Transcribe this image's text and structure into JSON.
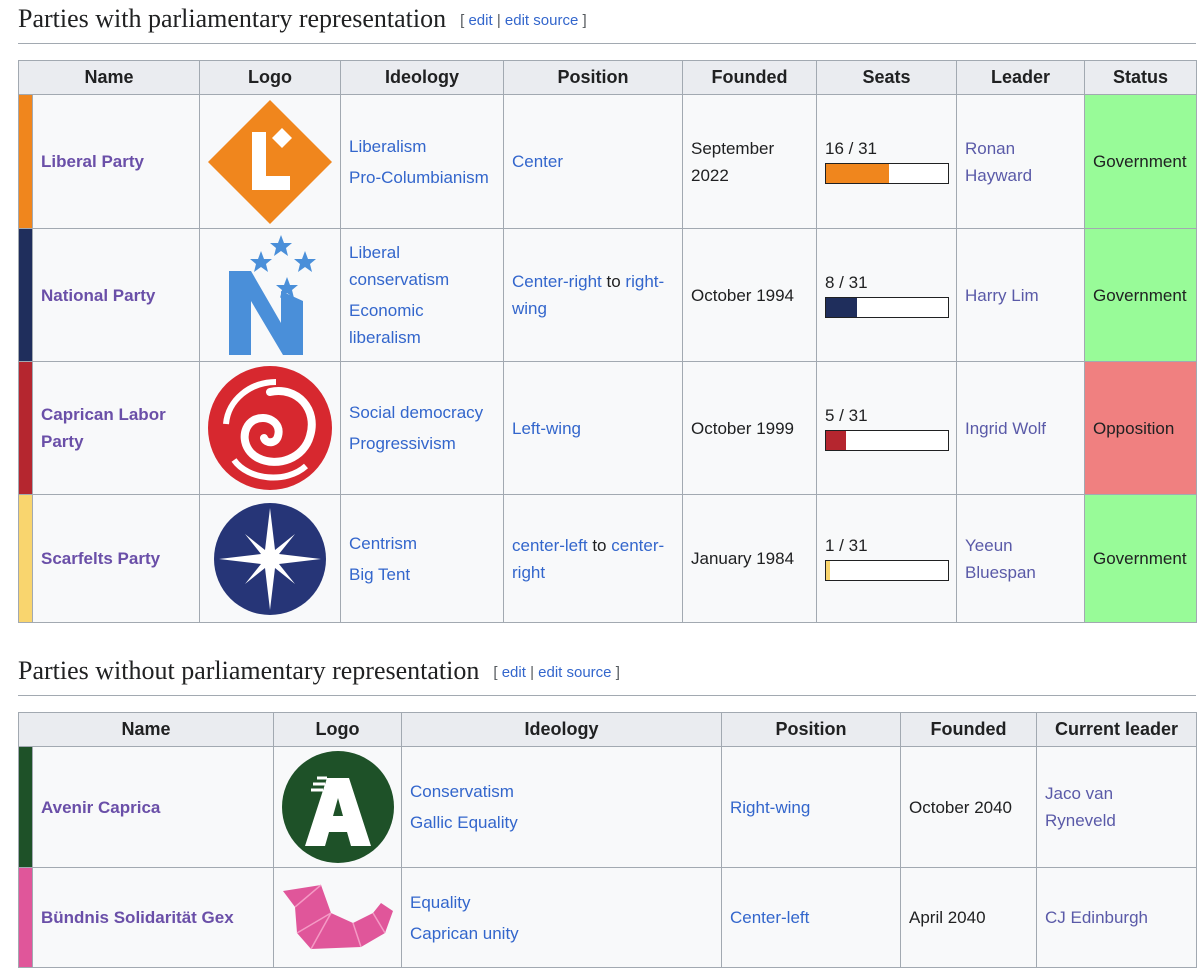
{
  "sections": [
    {
      "heading": "Parties with parliamentary representation",
      "edit": {
        "open": "[",
        "edit": "edit",
        "sep": "|",
        "edit_source": "edit source",
        "close": "]"
      },
      "table": {
        "columns": [
          "Name",
          "Logo",
          "Ideology",
          "Position",
          "Founded",
          "Seats",
          "Leader",
          "Status"
        ],
        "rows": [
          {
            "color": "#f0861d",
            "name": "Liberal Party",
            "ideology": [
              "Liberalism",
              "Pro-Columbianism"
            ],
            "position": [
              {
                "text": "Center",
                "link": true
              }
            ],
            "founded": "September 2022",
            "seats": {
              "value": 16,
              "total": 31,
              "label": "16 / 31"
            },
            "leader": "Ronan Hayward",
            "status": "Government",
            "status_color": "#98fb98"
          },
          {
            "color": "#1f2e5c",
            "name": "National Party",
            "ideology": [
              "Liberal conservatism",
              "Economic liberalism"
            ],
            "position": [
              {
                "text": "Center-right",
                "link": true
              },
              {
                "text": "to",
                "link": false
              },
              {
                "text": "right-wing",
                "link": true
              }
            ],
            "founded": "October 1994",
            "seats": {
              "value": 8,
              "total": 31,
              "label": "8 / 31"
            },
            "leader": "Harry Lim",
            "status": "Government",
            "status_color": "#98fb98"
          },
          {
            "color": "#b5262f",
            "name": "Caprican Labor Party",
            "ideology": [
              "Social democracy",
              "Progressivism"
            ],
            "position": [
              {
                "text": "Left-wing",
                "link": true
              }
            ],
            "founded": "October 1999",
            "seats": {
              "value": 5,
              "total": 31,
              "label": "5 / 31"
            },
            "leader": "Ingrid Wolf",
            "status": "Opposition",
            "status_color": "#f08080"
          },
          {
            "color": "#f9d56e",
            "name": "Scarfelts Party",
            "ideology": [
              "Centrism",
              "Big Tent"
            ],
            "position": [
              {
                "text": "center-left",
                "link": true
              },
              {
                "text": "to",
                "link": false
              },
              {
                "text": "center-right",
                "link": true
              }
            ],
            "founded": "January 1984",
            "seats": {
              "value": 1,
              "total": 31,
              "label": "1 / 31"
            },
            "leader": "Yeeun Bluespan",
            "status": "Government",
            "status_color": "#98fb98"
          }
        ]
      }
    },
    {
      "heading": "Parties without parliamentary representation",
      "edit": {
        "open": "[",
        "edit": "edit",
        "sep": "|",
        "edit_source": "edit source",
        "close": "]"
      },
      "table": {
        "columns": [
          "Name",
          "Logo",
          "Ideology",
          "Position",
          "Founded",
          "Current leader"
        ],
        "rows": [
          {
            "color": "#1e5128",
            "name": "Avenir Caprica",
            "ideology": [
              "Conservatism",
              "Gallic Equality"
            ],
            "position": [
              {
                "text": "Right-wing",
                "link": true
              }
            ],
            "founded": "October 2040",
            "leader": "Jaco van Ryneveld"
          },
          {
            "color": "#e0569a",
            "name": "Bündnis Solidarität Gex",
            "ideology": [
              "Equality",
              "Caprican unity"
            ],
            "position": [
              {
                "text": "Center-left",
                "link": true
              }
            ],
            "founded": "April 2040",
            "leader": "CJ Edinburgh"
          }
        ]
      }
    }
  ]
}
